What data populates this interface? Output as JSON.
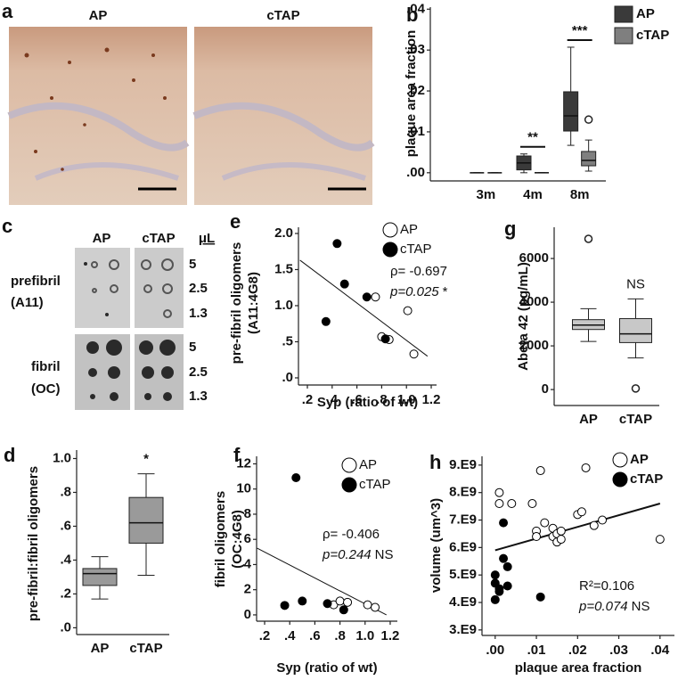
{
  "figure": {
    "panel_a": {
      "letter": "a",
      "labels": [
        "AP",
        "cTAP"
      ]
    },
    "panel_c": {
      "letter": "c",
      "columns": [
        "AP",
        "cTAP"
      ],
      "unit": "μL",
      "rows": [
        {
          "label": "prefibril",
          "sublabel": "(A11)",
          "volumes": [
            5,
            2.5,
            1.3
          ]
        },
        {
          "label": "fibril",
          "sublabel": "(OC)",
          "volumes": [
            5,
            2.5,
            1.3
          ]
        }
      ]
    }
  },
  "chart_data": [
    {
      "type": "box",
      "label": "b",
      "ylabel": "plaque area fraction",
      "categories": [
        "3m",
        "4m",
        "8m"
      ],
      "ylim": [
        -0.002,
        0.0405
      ],
      "yticks": [
        {
          "value": 0,
          "label": ".00"
        },
        {
          "value": 0.01,
          "label": ".01"
        },
        {
          "value": 0.02,
          "label": ".02"
        },
        {
          "value": 0.03,
          "label": ".03"
        },
        {
          "value": 0.04,
          "label": ".04"
        }
      ],
      "legend": "top-right",
      "series": [
        {
          "name": "AP",
          "color": "#3a3a3a",
          "min": [
            0,
            0,
            0.0067
          ],
          "q1": [
            0,
            0.0007,
            0.0102
          ],
          "median": [
            0,
            0.0024,
            0.0139
          ],
          "q3": [
            0,
            0.0041,
            0.0198
          ],
          "max": [
            0,
            0.0046,
            0.0307
          ],
          "outliers": [
            [],
            [],
            []
          ]
        },
        {
          "name": "cTAP",
          "color": "#7f7f7f",
          "min": [
            0,
            0,
            0.0004
          ],
          "q1": [
            0,
            0,
            0.0017
          ],
          "median": [
            0,
            0,
            0.003
          ],
          "q3": [
            0,
            0,
            0.0052
          ],
          "max": [
            0,
            0,
            0.008
          ],
          "outliers": [
            [],
            [],
            [
              0.013
            ]
          ]
        }
      ],
      "significance": [
        null,
        "**",
        "***"
      ]
    },
    {
      "type": "box",
      "label": "d",
      "ylabel": "pre-fibril:fibril oligomers",
      "categories": [
        "AP",
        "cTAP"
      ],
      "ylim": [
        -0.04,
        1.05
      ],
      "yticks": [
        {
          "value": 0,
          "label": ".0"
        },
        {
          "value": 0.2,
          "label": ".2"
        },
        {
          "value": 0.4,
          "label": ".4"
        },
        {
          "value": 0.6,
          "label": ".6"
        },
        {
          "value": 0.8,
          "label": ".8"
        },
        {
          "value": 1,
          "label": "1.0"
        }
      ],
      "series": [
        {
          "color": "#9a9a9a",
          "min": [
            0.17,
            0.31
          ],
          "q1": [
            0.25,
            0.5
          ],
          "median": [
            0.32,
            0.62
          ],
          "q3": [
            0.35,
            0.77
          ],
          "max": [
            0.42,
            0.91
          ],
          "outliers": [
            [],
            []
          ]
        }
      ],
      "significance": [
        null,
        "*"
      ]
    },
    {
      "type": "scatter",
      "label": "e",
      "xlabel": "Syp (ratio of wt)",
      "ylabel": [
        "pre-fibril oligomers",
        "(A11:4G8)"
      ],
      "xlim": [
        0.128,
        1.243
      ],
      "ylim": [
        -0.099,
        2.086
      ],
      "xticks": [
        {
          "value": 0.2,
          "label": ".2"
        },
        {
          "value": 0.4,
          "label": ".4"
        },
        {
          "value": 0.6,
          "label": ".6"
        },
        {
          "value": 0.8,
          "label": ".8"
        },
        {
          "value": 1,
          "label": "1.0"
        },
        {
          "value": 1.2,
          "label": "1.2"
        }
      ],
      "yticks": [
        {
          "value": 0,
          "label": ".0"
        },
        {
          "value": 0.5,
          "label": ".5"
        },
        {
          "value": 1,
          "label": "1.0"
        },
        {
          "value": 1.5,
          "label": "1.5"
        },
        {
          "value": 2,
          "label": "2.0"
        }
      ],
      "series": [
        {
          "name": "AP",
          "color": "#000000",
          "filled": false,
          "x": [
            0.75,
            0.8,
            0.86,
            1.01,
            1.06
          ],
          "y": [
            1.12,
            0.57,
            0.53,
            0.93,
            0.33
          ]
        },
        {
          "name": "cTAP",
          "color": "#000000",
          "filled": true,
          "x": [
            0.35,
            0.44,
            0.5,
            0.68,
            0.83
          ],
          "y": [
            0.78,
            1.86,
            1.3,
            1.12,
            0.54
          ]
        }
      ],
      "trendline": {
        "x": [
          0.14,
          1.17
        ],
        "y": [
          1.63,
          0.3
        ]
      },
      "stats": "ρ= -0.697",
      "pvalue": "p=0.025",
      "significance": "*"
    },
    {
      "type": "scatter",
      "label": "f",
      "xlabel": "Syp (ratio of wt)",
      "ylabel": [
        "fibril oligomers",
        "(OC:4G8)"
      ],
      "xlim": [
        0.136,
        1.257
      ],
      "ylim": [
        -0.5,
        12.6
      ],
      "xticks": [
        {
          "value": 0.2,
          "label": ".2"
        },
        {
          "value": 0.4,
          "label": ".4"
        },
        {
          "value": 0.6,
          "label": ".6"
        },
        {
          "value": 0.8,
          "label": ".8"
        },
        {
          "value": 1,
          "label": "1.0"
        },
        {
          "value": 1.2,
          "label": "1.2"
        }
      ],
      "yticks": [
        0,
        2,
        4,
        6,
        8,
        10,
        12
      ],
      "series": [
        {
          "name": "AP",
          "color": "#000000",
          "filled": false,
          "x": [
            0.75,
            0.8,
            0.86,
            1.02,
            1.08
          ],
          "y": [
            0.8,
            1.1,
            1.0,
            0.8,
            0.6
          ]
        },
        {
          "name": "cTAP",
          "color": "#000000",
          "filled": true,
          "x": [
            0.36,
            0.45,
            0.5,
            0.7,
            0.83
          ],
          "y": [
            0.75,
            10.9,
            1.1,
            0.9,
            0.4
          ]
        }
      ],
      "trendline": {
        "x": [
          0.14,
          1.17
        ],
        "y": [
          5.3,
          0
        ]
      },
      "stats": "ρ= -0.406",
      "pvalue": "p=0.244",
      "significance": "NS"
    },
    {
      "type": "box",
      "label": "g",
      "ylabel": "Abeta 42 (pg/mL)",
      "categories": [
        "AP",
        "cTAP"
      ],
      "ylim": [
        -730,
        7430
      ],
      "yticks": [
        0,
        2000,
        4000,
        6000
      ],
      "series": [
        {
          "color": "#c8c8c8",
          "min": [
            2200,
            1450
          ],
          "q1": [
            2750,
            2150
          ],
          "median": [
            2950,
            2550
          ],
          "q3": [
            3200,
            3250
          ],
          "max": [
            3700,
            4150
          ],
          "outliers": [
            [
              6900
            ],
            [
              50
            ]
          ]
        }
      ],
      "significance": [
        null,
        "NS"
      ]
    },
    {
      "type": "scatter",
      "label": "h",
      "xlabel": "plaque area fraction",
      "ylabel": "volume (um^3)",
      "xlim": [
        -0.0032,
        0.0435
      ],
      "ylim": [
        2800000000.0,
        9320000000.0
      ],
      "xticks": [
        {
          "value": 0,
          "label": ".00"
        },
        {
          "value": 0.01,
          "label": ".01"
        },
        {
          "value": 0.02,
          "label": ".02"
        },
        {
          "value": 0.03,
          "label": ".03"
        },
        {
          "value": 0.04,
          "label": ".04"
        }
      ],
      "yticks": [
        {
          "value": 3000000000.0,
          "label": "3.E9"
        },
        {
          "value": 4000000000.0,
          "label": "4.E9"
        },
        {
          "value": 5000000000.0,
          "label": "5.E9"
        },
        {
          "value": 6000000000.0,
          "label": "6.E9"
        },
        {
          "value": 7000000000.0,
          "label": "7.E9"
        },
        {
          "value": 8000000000.0,
          "label": "8.E9"
        },
        {
          "value": 9000000000.0,
          "label": "9.E9"
        }
      ],
      "series": [
        {
          "name": "AP",
          "color": "#000000",
          "filled": false,
          "x": [
            0.001,
            0.001,
            0.004,
            0.009,
            0.011,
            0.01,
            0.01,
            0.012,
            0.014,
            0.014,
            0.015,
            0.015,
            0.016,
            0.016,
            0.02,
            0.021,
            0.022,
            0.024,
            0.026,
            0.04
          ],
          "y": [
            8000000000.0,
            7600000000.0,
            7600000000.0,
            7600000000.0,
            8800000000.0,
            6600000000.0,
            6400000000.0,
            6900000000.0,
            6700000000.0,
            6400000000.0,
            6500000000.0,
            6200000000.0,
            6600000000.0,
            6300000000.0,
            7200000000.0,
            7300000000.0,
            8900000000.0,
            6800000000.0,
            7000000000.0,
            6300000000.0
          ]
        },
        {
          "name": "cTAP",
          "color": "#000000",
          "filled": true,
          "x": [
            0.0,
            0.0,
            0.001,
            0.002,
            0.003,
            0.001,
            0.003,
            0.002,
            0.011,
            0.0
          ],
          "y": [
            5000000000.0,
            4100000000.0,
            4500000000.0,
            5600000000.0,
            5300000000.0,
            4400000000.0,
            4600000000.0,
            6900000000.0,
            4200000000.0,
            4700000000.0
          ]
        }
      ],
      "trendline": {
        "x": [
          0,
          0.04
        ],
        "y": [
          5900000000.0,
          7600000000.0
        ]
      },
      "stats": "R²=0.106",
      "pvalue": "p=0.074",
      "significance": "NS"
    }
  ]
}
